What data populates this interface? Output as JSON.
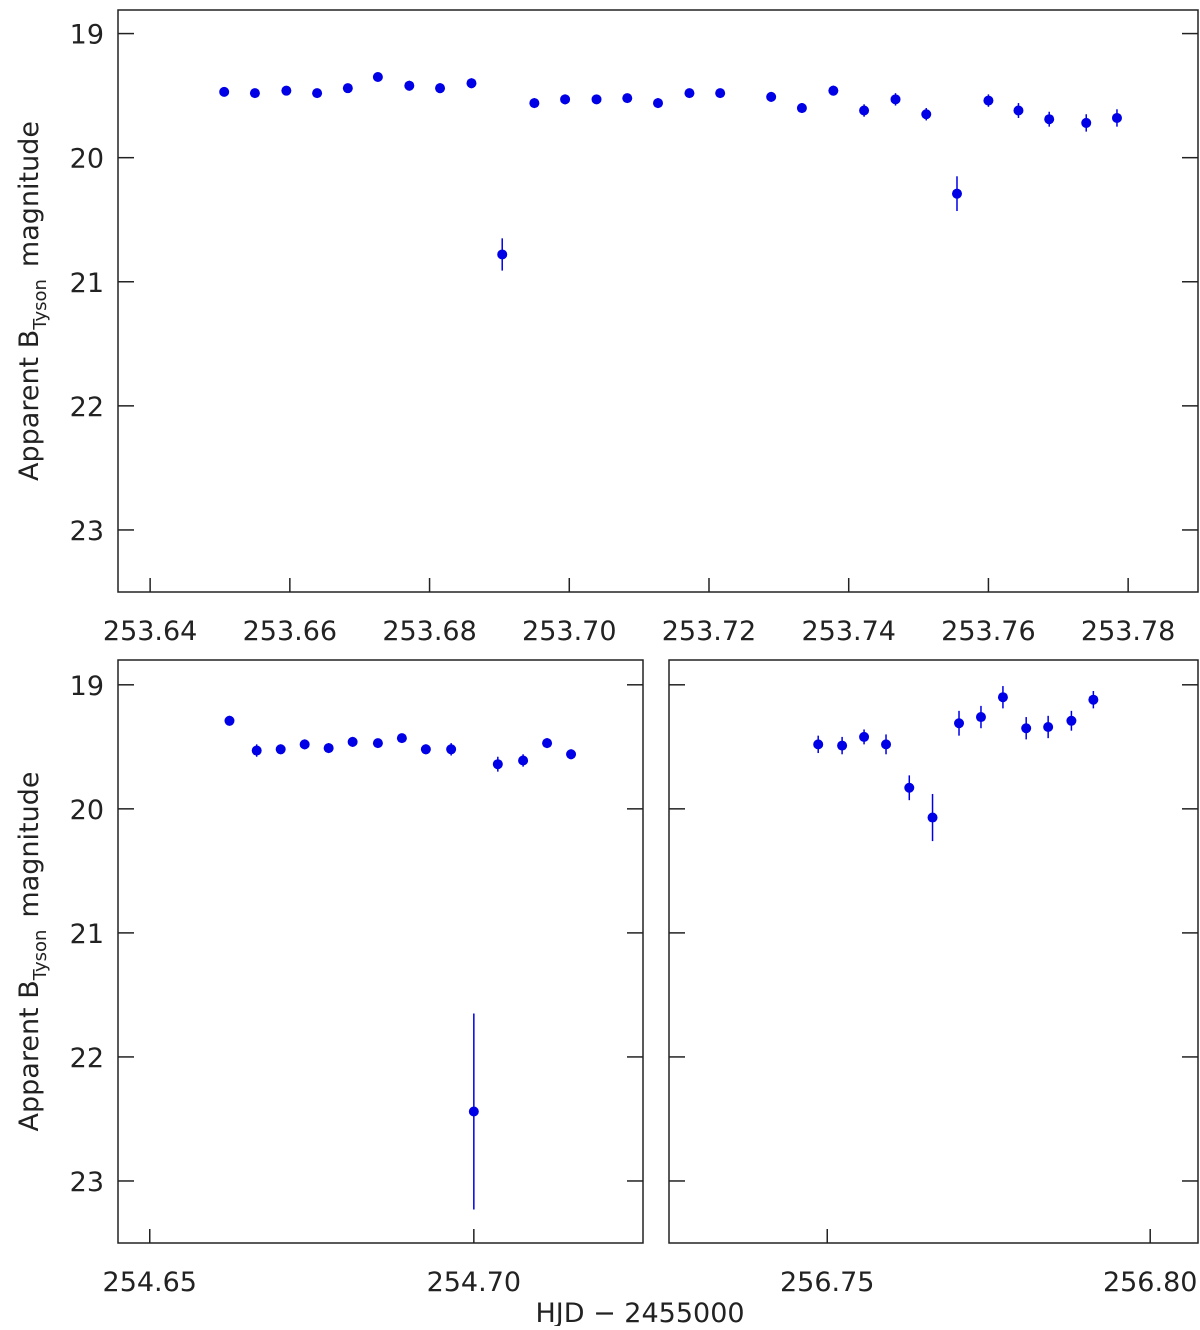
{
  "xlabel": "HJD − 2455000",
  "chart_data": [
    {
      "type": "scatter",
      "color": "#0000e6",
      "y_inverted": true,
      "y_tick_labels": true,
      "ylabel": "Apparent B",
      "ylabel_sub": "Tyson",
      "ylabel_end": "magnitude",
      "x": [
        253.6506,
        253.655,
        253.6595,
        253.6639,
        253.6683,
        253.6726,
        253.6771,
        253.6815,
        253.686,
        253.6904,
        253.695,
        253.6994,
        253.7039,
        253.7083,
        253.7127,
        253.7172,
        253.7216,
        253.7289,
        253.7333,
        253.7378,
        253.7422,
        253.7467,
        253.7511,
        253.7555,
        253.76,
        253.7643,
        253.7687,
        253.774,
        253.7784
      ],
      "values": [
        19.47,
        19.48,
        19.46,
        19.48,
        19.44,
        19.35,
        19.42,
        19.44,
        19.4,
        20.78,
        19.56,
        19.53,
        19.53,
        19.52,
        19.56,
        19.48,
        19.48,
        19.51,
        19.6,
        19.46,
        19.62,
        19.53,
        19.65,
        20.29,
        19.54,
        19.62,
        19.69,
        19.72,
        19.68
      ],
      "errors": [
        0.03,
        0.03,
        0.03,
        0.03,
        0.03,
        0.03,
        0.04,
        0.04,
        0.04,
        0.13,
        0.04,
        0.04,
        0.03,
        0.03,
        0.04,
        0.03,
        0.03,
        0.04,
        0.04,
        0.04,
        0.05,
        0.05,
        0.05,
        0.14,
        0.05,
        0.06,
        0.06,
        0.07,
        0.07
      ],
      "xlim": [
        253.6354,
        253.79
      ],
      "ylim": [
        18.81,
        23.5
      ],
      "xticks": [
        253.64,
        253.66,
        253.68,
        {
          "value": 253.7,
          "label": "253.70"
        },
        253.72,
        253.74,
        253.76,
        253.78
      ],
      "yticks": [
        19,
        20,
        21,
        22,
        23
      ]
    },
    {
      "type": "scatter",
      "color": "#0000e6",
      "y_inverted": true,
      "y_tick_labels": true,
      "ylabel": "Apparent B",
      "ylabel_sub": "Tyson",
      "ylabel_end": "magnitude",
      "x": [
        254.6623,
        254.6665,
        254.6702,
        254.6739,
        254.6776,
        254.6813,
        254.6852,
        254.6889,
        254.6926,
        254.6965,
        254.7,
        254.7037,
        254.7076,
        254.7113,
        254.715
      ],
      "values": [
        19.29,
        19.53,
        19.52,
        19.48,
        19.51,
        19.46,
        19.47,
        19.43,
        19.52,
        19.52,
        22.44,
        19.64,
        19.61,
        19.47,
        19.56
      ],
      "errors": [
        0.04,
        0.05,
        0.04,
        0.04,
        0.04,
        0.04,
        0.03,
        0.03,
        0.04,
        0.05,
        0.79,
        0.06,
        0.05,
        0.04,
        0.04
      ],
      "xlim": [
        254.6451,
        254.7261
      ],
      "ylim": [
        18.8,
        23.5
      ],
      "xticks": [
        254.65,
        {
          "value": 254.7,
          "label": "254.70"
        }
      ],
      "yticks": [
        19,
        20,
        21,
        22,
        23
      ]
    },
    {
      "type": "scatter",
      "color": "#0000e6",
      "y_inverted": true,
      "y_tick_labels": false,
      "x": [
        256.7486,
        256.7523,
        256.7557,
        256.7591,
        256.7627,
        256.7663,
        256.7704,
        256.7738,
        256.7772,
        256.7808,
        256.7842,
        256.7878,
        256.7912
      ],
      "values": [
        19.48,
        19.49,
        19.42,
        19.48,
        19.83,
        20.07,
        19.31,
        19.26,
        19.1,
        19.35,
        19.34,
        19.29,
        19.12
      ],
      "errors": [
        0.07,
        0.07,
        0.06,
        0.08,
        0.1,
        0.19,
        0.1,
        0.09,
        0.09,
        0.09,
        0.09,
        0.08,
        0.07
      ],
      "xlim": [
        256.7255,
        256.8074
      ],
      "ylim": [
        18.8,
        23.5
      ],
      "xticks": [
        256.75,
        {
          "value": 256.8,
          "label": "256.80"
        }
      ],
      "yticks": [
        19,
        20,
        21,
        22,
        23
      ]
    }
  ]
}
